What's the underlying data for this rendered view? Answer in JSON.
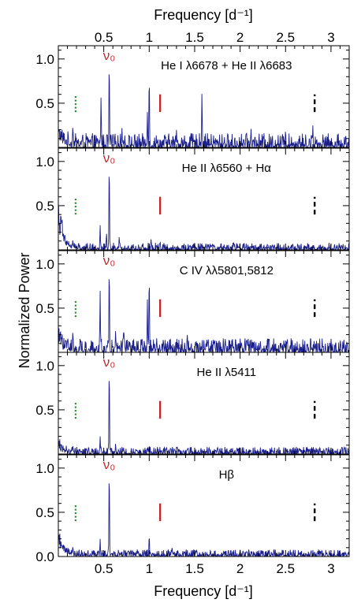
{
  "figure": {
    "xlabel_top": "Frequency [d⁻¹]",
    "xlabel_bottom": "Frequency [d⁻¹]",
    "ylabel": "Normalized Power"
  },
  "chart_data": {
    "type": "line",
    "xlim": [
      0,
      3.2
    ],
    "ylim": [
      0,
      1.15
    ],
    "xticks": [
      0.5,
      1,
      1.5,
      2,
      2.5,
      3
    ],
    "xtick_labels": [
      "0.5",
      "1",
      "1.5",
      "2",
      "2.5",
      "3"
    ],
    "yticks": [
      0.5,
      1.0
    ],
    "ytick_labels": [
      "0.5",
      "1.0"
    ],
    "bottom_ytick_labels": [
      "0.0",
      "0.5",
      "1.0"
    ],
    "nu0_label": "ν₀",
    "markers": {
      "green_dotted_x": 0.19,
      "red_solid_x": 1.12,
      "black_dashed_x": 2.82,
      "y_range": [
        0.4,
        0.6
      ]
    },
    "colors": {
      "series": "#1a1f8c",
      "nu0": "#c0282d",
      "green_marker": "#2a8a2a",
      "red_marker": "#c0282d",
      "black_marker": "#000000"
    },
    "panels": [
      {
        "label": "He I λ6678 + He II λ6683",
        "noise": 0.1,
        "decay_amp": 0.15,
        "peaks": [
          [
            0.56,
            1.0
          ],
          [
            0.47,
            0.58
          ],
          [
            1.0,
            0.83
          ],
          [
            1.58,
            0.62
          ],
          [
            0.98,
            0.4
          ],
          [
            2.12,
            0.22
          ],
          [
            2.8,
            0.25
          ],
          [
            0.16,
            0.25
          ],
          [
            0.7,
            0.22
          ],
          [
            1.3,
            0.2
          ],
          [
            2.5,
            0.2
          ]
        ]
      },
      {
        "label": "He II λ6560 + Hα",
        "noise": 0.05,
        "decay_amp": 0.45,
        "peaks": [
          [
            0.56,
            1.0
          ],
          [
            0.46,
            0.28
          ],
          [
            0.53,
            0.2
          ],
          [
            0.67,
            0.15
          ],
          [
            1.02,
            0.12
          ],
          [
            1.12,
            0.1
          ],
          [
            0.16,
            0.12
          ],
          [
            1.5,
            0.08
          ]
        ]
      },
      {
        "label": "C IV λλ5801,5812",
        "noise": 0.1,
        "decay_amp": 0.15,
        "peaks": [
          [
            0.56,
            1.0
          ],
          [
            0.46,
            0.7
          ],
          [
            1.0,
            0.9
          ],
          [
            0.98,
            0.6
          ],
          [
            0.72,
            0.28
          ],
          [
            0.63,
            0.25
          ],
          [
            1.42,
            0.2
          ],
          [
            0.16,
            0.25
          ],
          [
            1.95,
            0.18
          ],
          [
            2.3,
            0.15
          ]
        ]
      },
      {
        "label": "He II λ5411",
        "noise": 0.05,
        "decay_amp": 0.1,
        "peaks": [
          [
            0.56,
            1.0
          ],
          [
            0.46,
            0.2
          ],
          [
            0.63,
            0.12
          ],
          [
            1.0,
            0.1
          ],
          [
            0.16,
            0.1
          ],
          [
            1.3,
            0.08
          ]
        ]
      },
      {
        "label": "Hβ",
        "noise": 0.05,
        "decay_amp": 0.25,
        "peaks": [
          [
            0.56,
            1.0
          ],
          [
            0.46,
            0.2
          ],
          [
            1.0,
            0.25
          ],
          [
            0.16,
            0.12
          ],
          [
            1.25,
            0.1
          ],
          [
            2.0,
            0.08
          ],
          [
            2.9,
            0.08
          ]
        ]
      }
    ]
  }
}
